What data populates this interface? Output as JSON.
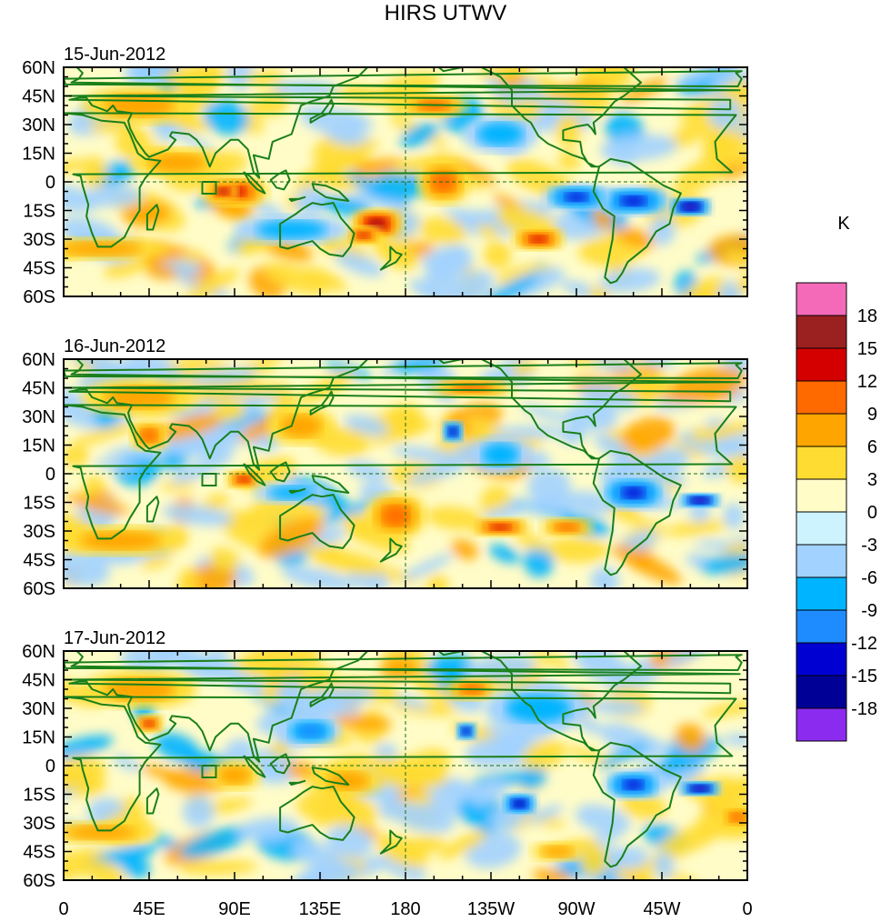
{
  "title": "HIRS UTWV",
  "panels": [
    {
      "date": "15-Jun-2012"
    },
    {
      "date": "16-Jun-2012"
    },
    {
      "date": "17-Jun-2012"
    }
  ],
  "lat_labels": [
    "60N",
    "45N",
    "30N",
    "15N",
    "0",
    "15S",
    "30S",
    "45S",
    "60S"
  ],
  "lat_values": [
    60,
    45,
    30,
    15,
    0,
    -15,
    -30,
    -45,
    -60
  ],
  "lon_labels": [
    "0",
    "45E",
    "90E",
    "135E",
    "180",
    "135W",
    "90W",
    "45W",
    "0"
  ],
  "lon_values": [
    0,
    45,
    90,
    135,
    180,
    225,
    270,
    315,
    360
  ],
  "colorbar": {
    "unit": "K",
    "labels": [
      "18",
      "15",
      "12",
      "9",
      "6",
      "3",
      "0",
      "-3",
      "-6",
      "-9",
      "-12",
      "-15",
      "-18"
    ],
    "colors": [
      "#f46ab8",
      "#9b2020",
      "#d40000",
      "#ff6a00",
      "#ffa500",
      "#ffdc32",
      "#fffcc8",
      "#cdf3ff",
      "#a2d2ff",
      "#00b4ff",
      "#1e8cff",
      "#0000d2",
      "#000096",
      "#8c2bf0"
    ]
  },
  "land_color": "#1a7f1a"
}
